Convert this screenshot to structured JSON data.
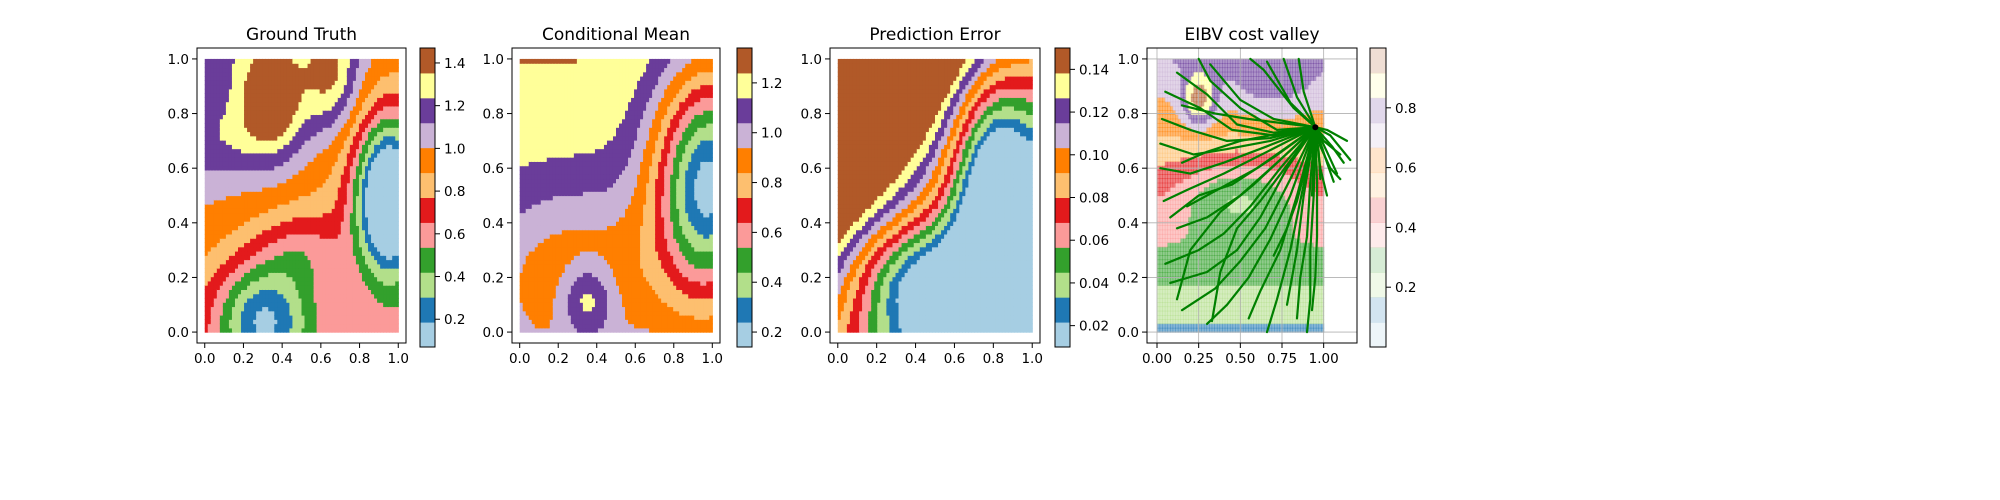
{
  "chart_data": [
    {
      "type": "heatmap",
      "title": "Ground Truth",
      "xlim": [
        -0.04,
        1.04
      ],
      "ylim": [
        -0.04,
        1.04
      ],
      "xticks": [
        "0.0",
        "0.2",
        "0.4",
        "0.6",
        "0.8",
        "1.0"
      ],
      "yticks": [
        "0.0",
        "0.2",
        "0.4",
        "0.6",
        "0.8",
        "1.0"
      ],
      "colorbar_ticks": [
        "0.2",
        "0.4",
        "0.6",
        "0.8",
        "1.0",
        "1.2",
        "1.4"
      ],
      "colorbar_range": [
        0.07,
        1.47
      ],
      "value_range": [
        0.09,
        1.45
      ],
      "colormap": "Paired"
    },
    {
      "type": "heatmap",
      "title": "Conditional Mean",
      "xlim": [
        -0.04,
        1.04
      ],
      "ylim": [
        -0.04,
        1.04
      ],
      "xticks": [
        "0.0",
        "0.2",
        "0.4",
        "0.6",
        "0.8",
        "1.0"
      ],
      "yticks": [
        "0.0",
        "0.2",
        "0.4",
        "0.6",
        "0.8",
        "1.0"
      ],
      "colorbar_ticks": [
        "0.2",
        "0.4",
        "0.6",
        "0.8",
        "1.0",
        "1.2"
      ],
      "colorbar_range": [
        0.14,
        1.34
      ],
      "value_range": [
        0.15,
        1.33
      ],
      "colormap": "Paired"
    },
    {
      "type": "heatmap",
      "title": "Prediction Error",
      "xlim": [
        -0.04,
        1.04
      ],
      "ylim": [
        -0.04,
        1.04
      ],
      "xticks": [
        "0.0",
        "0.2",
        "0.4",
        "0.6",
        "0.8",
        "1.0"
      ],
      "yticks": [
        "0.0",
        "0.2",
        "0.4",
        "0.6",
        "0.8",
        "1.0"
      ],
      "colorbar_ticks": [
        "0.02",
        "0.04",
        "0.06",
        "0.08",
        "0.10",
        "0.12",
        "0.14"
      ],
      "colorbar_range": [
        0.01,
        0.15
      ],
      "value_range": [
        0.012,
        0.148
      ],
      "colormap": "Paired"
    },
    {
      "type": "heatmap",
      "title": "EIBV cost valley",
      "xlim": [
        -0.06,
        1.2
      ],
      "ylim": [
        -0.04,
        1.04
      ],
      "xticks": [
        "0.00",
        "0.25",
        "0.50",
        "0.75",
        "1.00"
      ],
      "yticks": [
        "0.0",
        "0.2",
        "0.4",
        "0.6",
        "0.8",
        "1.0"
      ],
      "colorbar_ticks": [
        "0.2",
        "0.4",
        "0.6",
        "0.8"
      ],
      "colorbar_range": [
        0.0,
        1.0
      ],
      "colormap": "Paired (translucent)",
      "grid": true,
      "path_color": "#008000",
      "current_location": [
        0.95,
        0.75
      ],
      "paths": [
        [
          [
            0.95,
            0.75
          ],
          [
            0.82,
            0.82
          ],
          [
            0.64,
            0.96
          ],
          [
            0.56,
            1.0
          ]
        ],
        [
          [
            0.95,
            0.75
          ],
          [
            0.8,
            0.84
          ],
          [
            0.66,
            0.99
          ]
        ],
        [
          [
            0.95,
            0.75
          ],
          [
            0.84,
            0.86
          ],
          [
            0.76,
            1.0
          ]
        ],
        [
          [
            0.95,
            0.75
          ],
          [
            0.88,
            0.88
          ],
          [
            0.85,
            1.0
          ]
        ],
        [
          [
            0.95,
            0.75
          ],
          [
            0.7,
            0.78
          ],
          [
            0.5,
            0.85
          ],
          [
            0.32,
            0.98
          ]
        ],
        [
          [
            0.95,
            0.75
          ],
          [
            0.72,
            0.74
          ],
          [
            0.5,
            0.82
          ],
          [
            0.32,
            0.92
          ],
          [
            0.25,
            1.0
          ]
        ],
        [
          [
            0.95,
            0.75
          ],
          [
            0.7,
            0.73
          ],
          [
            0.48,
            0.76
          ],
          [
            0.3,
            0.87
          ],
          [
            0.12,
            0.95
          ]
        ],
        [
          [
            0.95,
            0.75
          ],
          [
            0.7,
            0.72
          ],
          [
            0.45,
            0.74
          ],
          [
            0.26,
            0.82
          ],
          [
            0.05,
            0.88
          ]
        ],
        [
          [
            0.95,
            0.75
          ],
          [
            0.68,
            0.71
          ],
          [
            0.42,
            0.7
          ],
          [
            0.2,
            0.74
          ],
          [
            0.03,
            0.78
          ]
        ],
        [
          [
            0.95,
            0.75
          ],
          [
            0.68,
            0.7
          ],
          [
            0.42,
            0.67
          ],
          [
            0.22,
            0.65
          ],
          [
            0.02,
            0.69
          ]
        ],
        [
          [
            0.95,
            0.75
          ],
          [
            0.66,
            0.68
          ],
          [
            0.4,
            0.62
          ],
          [
            0.2,
            0.58
          ],
          [
            0.02,
            0.6
          ]
        ],
        [
          [
            0.95,
            0.75
          ],
          [
            0.66,
            0.66
          ],
          [
            0.4,
            0.58
          ],
          [
            0.18,
            0.52
          ],
          [
            0.04,
            0.48
          ]
        ],
        [
          [
            0.95,
            0.75
          ],
          [
            0.7,
            0.64
          ],
          [
            0.45,
            0.54
          ],
          [
            0.25,
            0.5
          ],
          [
            0.08,
            0.42
          ]
        ],
        [
          [
            0.95,
            0.75
          ],
          [
            0.72,
            0.62
          ],
          [
            0.5,
            0.5
          ],
          [
            0.3,
            0.42
          ],
          [
            0.12,
            0.38
          ]
        ],
        [
          [
            0.95,
            0.75
          ],
          [
            0.74,
            0.6
          ],
          [
            0.56,
            0.46
          ],
          [
            0.4,
            0.36
          ],
          [
            0.25,
            0.3
          ],
          [
            0.05,
            0.25
          ]
        ],
        [
          [
            0.95,
            0.75
          ],
          [
            0.78,
            0.6
          ],
          [
            0.62,
            0.42
          ],
          [
            0.48,
            0.3
          ],
          [
            0.3,
            0.22
          ],
          [
            0.08,
            0.18
          ]
        ],
        [
          [
            0.95,
            0.75
          ],
          [
            0.8,
            0.56
          ],
          [
            0.65,
            0.38
          ],
          [
            0.5,
            0.26
          ],
          [
            0.35,
            0.16
          ],
          [
            0.15,
            0.08
          ]
        ],
        [
          [
            0.95,
            0.75
          ],
          [
            0.8,
            0.5
          ],
          [
            0.68,
            0.34
          ],
          [
            0.55,
            0.2
          ],
          [
            0.42,
            0.1
          ],
          [
            0.3,
            0.03
          ]
        ],
        [
          [
            0.95,
            0.75
          ],
          [
            0.84,
            0.5
          ],
          [
            0.74,
            0.3
          ],
          [
            0.62,
            0.15
          ],
          [
            0.55,
            0.05
          ]
        ],
        [
          [
            0.95,
            0.75
          ],
          [
            0.86,
            0.48
          ],
          [
            0.8,
            0.3
          ],
          [
            0.72,
            0.12
          ],
          [
            0.66,
            0.0
          ]
        ],
        [
          [
            0.95,
            0.75
          ],
          [
            0.88,
            0.5
          ],
          [
            0.84,
            0.3
          ],
          [
            0.78,
            0.1
          ]
        ],
        [
          [
            0.95,
            0.75
          ],
          [
            0.92,
            0.55
          ],
          [
            0.9,
            0.35
          ],
          [
            0.86,
            0.2
          ],
          [
            0.84,
            0.05
          ]
        ],
        [
          [
            0.95,
            0.75
          ],
          [
            0.94,
            0.5
          ],
          [
            0.92,
            0.3
          ],
          [
            0.92,
            0.12
          ],
          [
            0.9,
            0.0
          ]
        ],
        [
          [
            0.95,
            0.75
          ],
          [
            0.96,
            0.55
          ],
          [
            0.96,
            0.35
          ],
          [
            0.95,
            0.2
          ],
          [
            0.93,
            0.08
          ]
        ],
        [
          [
            0.95,
            0.75
          ],
          [
            0.9,
            0.62
          ],
          [
            0.84,
            0.48
          ],
          [
            0.78,
            0.38
          ],
          [
            0.7,
            0.28
          ]
        ],
        [
          [
            0.95,
            0.75
          ],
          [
            0.6,
            0.6
          ],
          [
            0.36,
            0.52
          ],
          [
            0.18,
            0.46
          ]
        ],
        [
          [
            0.95,
            0.75
          ],
          [
            0.58,
            0.54
          ],
          [
            0.38,
            0.44
          ],
          [
            0.2,
            0.3
          ],
          [
            0.12,
            0.12
          ]
        ],
        [
          [
            0.95,
            0.75
          ],
          [
            0.62,
            0.48
          ],
          [
            0.48,
            0.38
          ],
          [
            0.38,
            0.22
          ],
          [
            0.33,
            0.04
          ]
        ],
        [
          [
            0.95,
            0.75
          ],
          [
            0.5,
            0.7
          ],
          [
            0.3,
            0.66
          ],
          [
            0.15,
            0.62
          ]
        ],
        [
          [
            0.95,
            0.75
          ],
          [
            0.55,
            0.78
          ],
          [
            0.35,
            0.8
          ],
          [
            0.15,
            0.83
          ]
        ],
        [
          [
            0.95,
            0.75
          ],
          [
            0.98,
            0.6
          ],
          [
            1.02,
            0.5
          ]
        ],
        [
          [
            0.95,
            0.75
          ],
          [
            1.02,
            0.66
          ],
          [
            1.08,
            0.58
          ]
        ],
        [
          [
            0.95,
            0.75
          ],
          [
            1.05,
            0.68
          ],
          [
            1.12,
            0.62
          ]
        ],
        [
          [
            0.95,
            0.75
          ],
          [
            1.04,
            0.72
          ],
          [
            1.16,
            0.63
          ]
        ],
        [
          [
            0.95,
            0.75
          ],
          [
            1.02,
            0.62
          ],
          [
            1.06,
            0.55
          ]
        ],
        [
          [
            0.95,
            0.75
          ],
          [
            0.97,
            0.66
          ],
          [
            0.98,
            0.56
          ]
        ],
        [
          [
            0.95,
            0.75
          ],
          [
            1.0,
            0.7
          ],
          [
            1.1,
            0.65
          ]
        ],
        [
          [
            0.95,
            0.75
          ],
          [
            0.94,
            0.62
          ],
          [
            0.93,
            0.5
          ]
        ],
        [
          [
            0.95,
            0.75
          ],
          [
            0.98,
            0.68
          ],
          [
            1.04,
            0.6
          ],
          [
            1.1,
            0.56
          ]
        ],
        [
          [
            0.95,
            0.75
          ],
          [
            1.02,
            0.74
          ],
          [
            1.14,
            0.7
          ]
        ],
        [
          [
            0.95,
            0.75
          ],
          [
            0.92,
            0.66
          ],
          [
            0.88,
            0.58
          ]
        ]
      ]
    }
  ]
}
